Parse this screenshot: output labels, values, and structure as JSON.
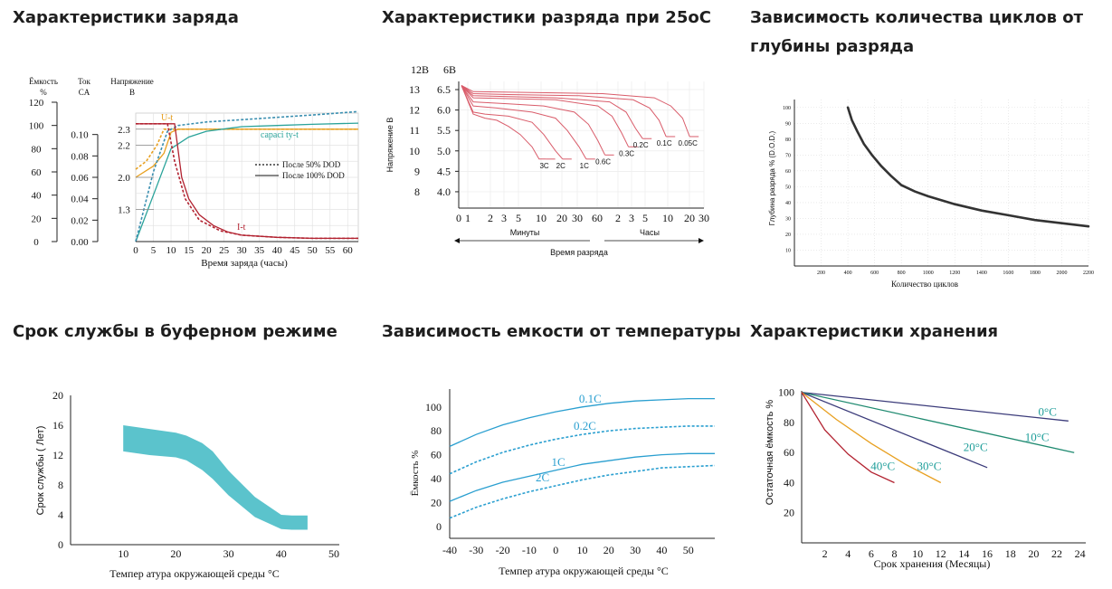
{
  "titles": {
    "p1": "Характеристики заряда",
    "p2": "Характеристики разряда при 25oC",
    "p3_l1": "Зависимость количества циклов от",
    "p3_l2": "глубины разряда",
    "p4": "Срок службы в буферном режиме",
    "p5": "Зависимость емкости от температуры",
    "p6": "Характеристики хранения"
  },
  "chart_data": [
    {
      "type": "line",
      "id": "charge",
      "xlabel": "Время заряда (часы)",
      "x_ticks": [
        0,
        5,
        10,
        15,
        20,
        25,
        30,
        35,
        40,
        45,
        50,
        55,
        60
      ],
      "xlim": [
        0,
        63
      ],
      "axes_headers": {
        "capacity": "Ёмкость",
        "capacity_unit": "%",
        "current": "Ток",
        "current_unit": "CA",
        "voltage": "Напряжение",
        "voltage_unit": "В"
      },
      "capacity_ticks": [
        "120",
        "100",
        "80",
        "60",
        "40",
        "20",
        "0"
      ],
      "current_ticks": [
        "0.10",
        "0.08",
        "0.06",
        "0.04",
        "0.02",
        "0.00"
      ],
      "voltage_ticks": [
        "2.3",
        "2.2",
        "2.0",
        "1.3"
      ],
      "series_labels": {
        "u": "U-t",
        "capacity": "capaci ty-t",
        "current": "I-t"
      },
      "legend": {
        "dotted": "После 50% DOD",
        "solid": "После 100% DOD"
      },
      "colors": {
        "voltage": "#e8a020",
        "capacity": "#2aa39a",
        "current": "#b22230"
      },
      "series": [
        {
          "name": "U-t",
          "style": "solid",
          "x": [
            0,
            5,
            8,
            10,
            12,
            20,
            40,
            63
          ],
          "y": [
            2.0,
            2.07,
            2.15,
            2.28,
            2.3,
            2.3,
            2.3,
            2.3
          ]
        },
        {
          "name": "U-t",
          "style": "dotted",
          "x": [
            0,
            3,
            6,
            8,
            10,
            20,
            40,
            63
          ],
          "y": [
            2.05,
            2.1,
            2.2,
            2.3,
            2.3,
            2.3,
            2.3,
            2.3
          ]
        },
        {
          "name": "capaci ty-t",
          "style": "solid",
          "x": [
            0,
            5,
            10,
            15,
            20,
            30,
            40,
            50,
            63
          ],
          "y": [
            0,
            40,
            80,
            90,
            95,
            99,
            100,
            101,
            102
          ]
        },
        {
          "name": "capaci ty-t",
          "style": "dotted",
          "x": [
            0,
            5,
            9,
            12,
            20,
            30,
            40,
            50,
            63
          ],
          "y": [
            0,
            60,
            95,
            100,
            103,
            105,
            107,
            109,
            112
          ]
        },
        {
          "name": "I-t",
          "style": "solid",
          "x": [
            0,
            11,
            13,
            15,
            18,
            22,
            26,
            30,
            40,
            50,
            63
          ],
          "y": [
            0.11,
            0.11,
            0.06,
            0.04,
            0.025,
            0.015,
            0.009,
            0.006,
            0.004,
            0.003,
            0.003
          ]
        },
        {
          "name": "I-t",
          "style": "dotted",
          "x": [
            0,
            9,
            11,
            14,
            18,
            24,
            30,
            40,
            50,
            63
          ],
          "y": [
            0.11,
            0.11,
            0.075,
            0.04,
            0.02,
            0.01,
            0.006,
            0.004,
            0.003,
            0.003
          ]
        }
      ]
    },
    {
      "type": "line",
      "id": "discharge",
      "xlabel": "Время разряда",
      "ylabel": "Напряжение В",
      "y12_header": "12В",
      "y6_header": "6В",
      "y12_ticks": [
        "13",
        "12",
        "11",
        "10",
        "9",
        "8"
      ],
      "y6_ticks": [
        "6.5",
        "6.0",
        "5.5",
        "5.0",
        "4.5",
        "4.0"
      ],
      "ylim_6v": [
        3.6,
        6.7
      ],
      "x_minutes_ticks": [
        "0",
        "1",
        "2",
        "3",
        "5",
        "10",
        "20",
        "30",
        "60"
      ],
      "x_hours_ticks": [
        "2",
        "3",
        "5",
        "10",
        "20",
        "30"
      ],
      "x_group_labels": {
        "minutes": "Минуты",
        "hours": "Часы"
      },
      "curve_color": "#d95c6a",
      "curves": [
        {
          "name": "3C",
          "x": [
            0,
            0.5,
            1,
            1.5,
            2,
            2.5,
            3,
            3.3,
            3.6
          ],
          "y": [
            6.6,
            5.9,
            5.8,
            5.75,
            5.6,
            5.4,
            5.1,
            4.8,
            4.8
          ]
        },
        {
          "name": "2C",
          "x": [
            0,
            0.5,
            1,
            2,
            3,
            3.5,
            4,
            4.3
          ],
          "y": [
            6.6,
            5.95,
            5.9,
            5.85,
            5.7,
            5.4,
            5.0,
            4.8
          ]
        },
        {
          "name": "1C",
          "x": [
            0,
            0.5,
            1.5,
            3,
            4,
            4.5,
            5,
            5.3
          ],
          "y": [
            6.6,
            6.1,
            6.05,
            5.95,
            5.8,
            5.5,
            5.1,
            4.8
          ]
        },
        {
          "name": "0.6C",
          "x": [
            0,
            0.5,
            2,
            3.5,
            4.8,
            5.4,
            5.8,
            6.1
          ],
          "y": [
            6.6,
            6.2,
            6.15,
            6.1,
            5.95,
            5.65,
            5.25,
            4.9
          ]
        },
        {
          "name": "0.3C",
          "x": [
            0,
            0.5,
            2,
            4,
            5.8,
            6.4,
            6.8,
            7.1
          ],
          "y": [
            6.6,
            6.3,
            6.28,
            6.25,
            6.1,
            5.85,
            5.45,
            5.1
          ]
        },
        {
          "name": "0.2C",
          "x": [
            0,
            0.5,
            2,
            4,
            6.3,
            7.0,
            7.4,
            7.7
          ],
          "y": [
            6.6,
            6.35,
            6.33,
            6.3,
            6.2,
            5.95,
            5.55,
            5.3
          ]
        },
        {
          "name": "0.1C",
          "x": [
            0,
            0.5,
            2,
            5,
            7.3,
            8.0,
            8.4,
            8.7
          ],
          "y": [
            6.6,
            6.4,
            6.38,
            6.35,
            6.25,
            6.05,
            5.75,
            5.35
          ]
        },
        {
          "name": "0.05C",
          "x": [
            0,
            0.5,
            3,
            6,
            8.2,
            8.9,
            9.4,
            9.7
          ],
          "y": [
            6.6,
            6.45,
            6.43,
            6.4,
            6.3,
            6.1,
            5.8,
            5.35
          ]
        }
      ]
    },
    {
      "type": "line",
      "id": "cycles",
      "xlabel": "Количество циклов",
      "ylabel": "Глубина разряда % (D.O.D.)",
      "x_ticks": [
        200,
        400,
        600,
        800,
        1000,
        1200,
        1400,
        1600,
        1800,
        2000,
        2200
      ],
      "y_ticks": [
        10,
        20,
        30,
        40,
        50,
        60,
        70,
        80,
        90,
        100
      ],
      "xlim": [
        0,
        2200
      ],
      "ylim": [
        0,
        105
      ],
      "color": "#333333",
      "series": [
        {
          "x": [
            400,
            430,
            470,
            520,
            580,
            650,
            720,
            800,
            900,
            1000,
            1200,
            1400,
            1600,
            1800,
            2000,
            2200
          ],
          "y": [
            100,
            92,
            85,
            77,
            70,
            63,
            57,
            51,
            47,
            44,
            39,
            35,
            32,
            29,
            27,
            25
          ]
        }
      ]
    },
    {
      "type": "area",
      "id": "float_life",
      "xlabel": "Темпер атура окружающей среды °C",
      "ylabel": "Срок службы ( Лет)",
      "x_ticks": [
        10,
        20,
        30,
        40,
        50
      ],
      "y_ticks": [
        0,
        4,
        8,
        12,
        16,
        20
      ],
      "xlim": [
        0,
        50
      ],
      "ylim": [
        0,
        20
      ],
      "color": "#5bc3cc",
      "upper": {
        "x": [
          10,
          15,
          20,
          22,
          25,
          27,
          30,
          35,
          40,
          42,
          45
        ],
        "y": [
          16,
          15.5,
          15,
          14.6,
          13.6,
          12.5,
          9.9,
          6.4,
          4.0,
          3.9,
          3.9
        ]
      },
      "lower": {
        "x": [
          10,
          15,
          20,
          22,
          25,
          27,
          30,
          35,
          40,
          42,
          45
        ],
        "y": [
          12.5,
          12.0,
          11.7,
          11.3,
          10.0,
          8.8,
          6.6,
          3.7,
          2.1,
          2.0,
          2.0
        ]
      }
    },
    {
      "type": "line",
      "id": "capacity_temp",
      "xlabel": "Темпер атура окружающей среды °C",
      "ylabel": "Ёмкость %",
      "x_ticks": [
        -40,
        -30,
        -20,
        -10,
        0,
        10,
        20,
        30,
        40,
        50
      ],
      "y_ticks": [
        0,
        20,
        40,
        60,
        80,
        100
      ],
      "xlim": [
        -40,
        60
      ],
      "ylim": [
        -10,
        115
      ],
      "color": "#2a9fd0",
      "series": [
        {
          "name": "0.1C",
          "style": "solid",
          "x": [
            -40,
            -30,
            -20,
            -10,
            0,
            10,
            20,
            30,
            40,
            50,
            60
          ],
          "y": [
            67,
            77,
            85,
            91,
            96,
            100,
            103,
            105,
            106,
            107,
            107
          ]
        },
        {
          "name": "0.2C",
          "style": "dotted",
          "x": [
            -40,
            -30,
            -20,
            -10,
            0,
            10,
            20,
            30,
            40,
            50,
            60
          ],
          "y": [
            44,
            54,
            62,
            68,
            73,
            77,
            80,
            82,
            83,
            84,
            84
          ]
        },
        {
          "name": "1C",
          "style": "solid",
          "x": [
            -40,
            -30,
            -20,
            -10,
            0,
            10,
            20,
            30,
            40,
            50,
            60
          ],
          "y": [
            21,
            30,
            37,
            42,
            47,
            52,
            55,
            58,
            60,
            61,
            61
          ]
        },
        {
          "name": "2C",
          "style": "dotted",
          "x": [
            -40,
            -30,
            -20,
            -10,
            0,
            10,
            20,
            30,
            40,
            50,
            60
          ],
          "y": [
            7,
            16,
            23,
            29,
            34,
            39,
            43,
            46,
            49,
            50,
            51
          ]
        }
      ]
    },
    {
      "type": "line",
      "id": "storage",
      "xlabel": "Срок хранения (Месяцы)",
      "ylabel": "Остаточная ёмкость %",
      "x_ticks": [
        2,
        4,
        6,
        8,
        10,
        12,
        14,
        16,
        18,
        20,
        22,
        24
      ],
      "y_ticks": [
        20,
        40,
        60,
        80,
        100
      ],
      "xlim": [
        0,
        24.5
      ],
      "ylim": [
        0,
        101
      ],
      "series": [
        {
          "name": "0°C",
          "color": "#3b3b7a",
          "x": [
            0,
            23
          ],
          "y": [
            100,
            81
          ]
        },
        {
          "name": "10°C",
          "color": "#1f8a70",
          "x": [
            0,
            23.5
          ],
          "y": [
            100,
            60
          ]
        },
        {
          "name": "20°C",
          "color": "#3b3b7a",
          "x": [
            0,
            16
          ],
          "y": [
            100,
            50
          ]
        },
        {
          "name": "30°C",
          "color": "#e8a020",
          "x": [
            0,
            3,
            6,
            9,
            12
          ],
          "y": [
            100,
            82,
            66,
            52,
            40
          ]
        },
        {
          "name": "40°C",
          "color": "#b22230",
          "x": [
            0,
            2,
            4,
            6,
            8
          ],
          "y": [
            100,
            75,
            59,
            47,
            40
          ]
        }
      ]
    }
  ]
}
